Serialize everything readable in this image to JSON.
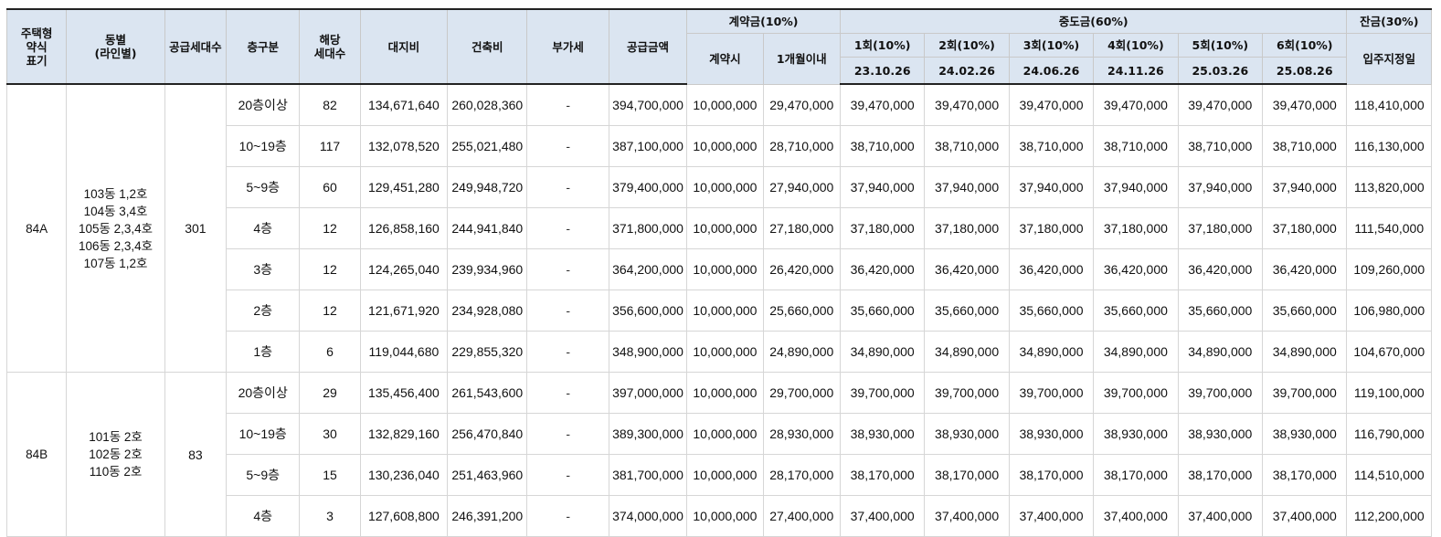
{
  "headers": {
    "type": "주택형\n약식\n표기",
    "dong": "동별\n(라인별)",
    "supply": "공급세대수",
    "floor": "층구분",
    "units": "해당\n세대수",
    "land": "대지비",
    "building": "건축비",
    "vat": "부가세",
    "total": "공급금액",
    "deposit_group": "계약금(10%)",
    "deposit_sign": "계약시",
    "deposit_month": "1개월이내",
    "middle_group": "중도금(60%)",
    "m1": "1회(10%)",
    "m2": "2회(10%)",
    "m3": "3회(10%)",
    "m4": "4회(10%)",
    "m5": "5회(10%)",
    "m6": "6회(10%)",
    "d1": "23.10.26",
    "d2": "24.02.26",
    "d3": "24.06.26",
    "d4": "24.11.26",
    "d5": "25.03.26",
    "d6": "25.08.26",
    "balance_group": "잔금(30%)",
    "balance_date": "입주지정일"
  },
  "groups": [
    {
      "type": "84A",
      "dong_lines": [
        "103동 1,2호",
        "104동 3,4호",
        "105동 2,3,4호",
        "106동 2,3,4호",
        "107동 1,2호"
      ],
      "supply": "301",
      "rows": [
        {
          "floor": "20층이상",
          "units": "82",
          "land": "134,671,640",
          "building": "260,028,360",
          "vat": "-",
          "total": "394,700,000",
          "sign": "10,000,000",
          "month": "29,470,000",
          "m1": "39,470,000",
          "m2": "39,470,000",
          "m3": "39,470,000",
          "m4": "39,470,000",
          "m5": "39,470,000",
          "m6": "39,470,000",
          "balance": "118,410,000"
        },
        {
          "floor": "10~19층",
          "units": "117",
          "land": "132,078,520",
          "building": "255,021,480",
          "vat": "-",
          "total": "387,100,000",
          "sign": "10,000,000",
          "month": "28,710,000",
          "m1": "38,710,000",
          "m2": "38,710,000",
          "m3": "38,710,000",
          "m4": "38,710,000",
          "m5": "38,710,000",
          "m6": "38,710,000",
          "balance": "116,130,000"
        },
        {
          "floor": "5~9층",
          "units": "60",
          "land": "129,451,280",
          "building": "249,948,720",
          "vat": "-",
          "total": "379,400,000",
          "sign": "10,000,000",
          "month": "27,940,000",
          "m1": "37,940,000",
          "m2": "37,940,000",
          "m3": "37,940,000",
          "m4": "37,940,000",
          "m5": "37,940,000",
          "m6": "37,940,000",
          "balance": "113,820,000"
        },
        {
          "floor": "4층",
          "units": "12",
          "land": "126,858,160",
          "building": "244,941,840",
          "vat": "-",
          "total": "371,800,000",
          "sign": "10,000,000",
          "month": "27,180,000",
          "m1": "37,180,000",
          "m2": "37,180,000",
          "m3": "37,180,000",
          "m4": "37,180,000",
          "m5": "37,180,000",
          "m6": "37,180,000",
          "balance": "111,540,000"
        },
        {
          "floor": "3층",
          "units": "12",
          "land": "124,265,040",
          "building": "239,934,960",
          "vat": "-",
          "total": "364,200,000",
          "sign": "10,000,000",
          "month": "26,420,000",
          "m1": "36,420,000",
          "m2": "36,420,000",
          "m3": "36,420,000",
          "m4": "36,420,000",
          "m5": "36,420,000",
          "m6": "36,420,000",
          "balance": "109,260,000"
        },
        {
          "floor": "2층",
          "units": "12",
          "land": "121,671,920",
          "building": "234,928,080",
          "vat": "-",
          "total": "356,600,000",
          "sign": "10,000,000",
          "month": "25,660,000",
          "m1": "35,660,000",
          "m2": "35,660,000",
          "m3": "35,660,000",
          "m4": "35,660,000",
          "m5": "35,660,000",
          "m6": "35,660,000",
          "balance": "106,980,000"
        },
        {
          "floor": "1층",
          "units": "6",
          "land": "119,044,680",
          "building": "229,855,320",
          "vat": "-",
          "total": "348,900,000",
          "sign": "10,000,000",
          "month": "24,890,000",
          "m1": "34,890,000",
          "m2": "34,890,000",
          "m3": "34,890,000",
          "m4": "34,890,000",
          "m5": "34,890,000",
          "m6": "34,890,000",
          "balance": "104,670,000"
        }
      ]
    },
    {
      "type": "84B",
      "dong_lines": [
        "101동 2호",
        "102동 2호",
        "110동 2호"
      ],
      "supply": "83",
      "rows": [
        {
          "floor": "20층이상",
          "units": "29",
          "land": "135,456,400",
          "building": "261,543,600",
          "vat": "-",
          "total": "397,000,000",
          "sign": "10,000,000",
          "month": "29,700,000",
          "m1": "39,700,000",
          "m2": "39,700,000",
          "m3": "39,700,000",
          "m4": "39,700,000",
          "m5": "39,700,000",
          "m6": "39,700,000",
          "balance": "119,100,000"
        },
        {
          "floor": "10~19층",
          "units": "30",
          "land": "132,829,160",
          "building": "256,470,840",
          "vat": "-",
          "total": "389,300,000",
          "sign": "10,000,000",
          "month": "28,930,000",
          "m1": "38,930,000",
          "m2": "38,930,000",
          "m3": "38,930,000",
          "m4": "38,930,000",
          "m5": "38,930,000",
          "m6": "38,930,000",
          "balance": "116,790,000"
        },
        {
          "floor": "5~9층",
          "units": "15",
          "land": "130,236,040",
          "building": "251,463,960",
          "vat": "-",
          "total": "381,700,000",
          "sign": "10,000,000",
          "month": "28,170,000",
          "m1": "38,170,000",
          "m2": "38,170,000",
          "m3": "38,170,000",
          "m4": "38,170,000",
          "m5": "38,170,000",
          "m6": "38,170,000",
          "balance": "114,510,000"
        },
        {
          "floor": "4층",
          "units": "3",
          "land": "127,608,800",
          "building": "246,391,200",
          "vat": "-",
          "total": "374,000,000",
          "sign": "10,000,000",
          "month": "27,400,000",
          "m1": "37,400,000",
          "m2": "37,400,000",
          "m3": "37,400,000",
          "m4": "37,400,000",
          "m5": "37,400,000",
          "m6": "37,400,000",
          "balance": "112,200,000"
        }
      ]
    }
  ]
}
